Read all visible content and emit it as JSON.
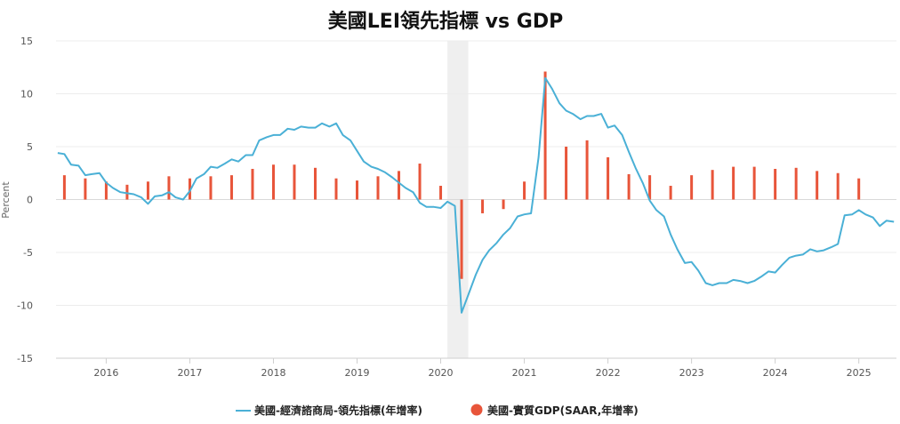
{
  "chart_data": {
    "type": "line+bar",
    "title": "美國LEI領先指標 vs GDP",
    "ylabel": "Percent",
    "xlabel": "",
    "ylim": [
      -15,
      15
    ],
    "yticks": [
      15,
      10,
      5,
      0,
      -5,
      -10,
      -15
    ],
    "xlim": [
      2015.4,
      2025.45
    ],
    "xticks": [
      "2016",
      "2017",
      "2018",
      "2019",
      "2020",
      "2021",
      "2022",
      "2023",
      "2024",
      "2025"
    ],
    "grid": true,
    "legend_position": "bottom",
    "shaded_periods": [
      [
        2020.08,
        2020.33
      ]
    ],
    "series": [
      {
        "name": "美國-經濟諮商局-領先指標(年增率)",
        "type": "line",
        "color": "#4ab0d6",
        "x": [
          2015.42,
          2015.5,
          2015.58,
          2015.67,
          2015.75,
          2015.83,
          2015.92,
          2016.0,
          2016.08,
          2016.17,
          2016.25,
          2016.33,
          2016.42,
          2016.5,
          2016.58,
          2016.67,
          2016.75,
          2016.83,
          2016.92,
          2017.0,
          2017.08,
          2017.17,
          2017.25,
          2017.33,
          2017.42,
          2017.5,
          2017.58,
          2017.67,
          2017.75,
          2017.83,
          2017.92,
          2018.0,
          2018.08,
          2018.17,
          2018.25,
          2018.33,
          2018.42,
          2018.5,
          2018.58,
          2018.67,
          2018.75,
          2018.83,
          2018.92,
          2019.0,
          2019.08,
          2019.17,
          2019.25,
          2019.33,
          2019.42,
          2019.5,
          2019.58,
          2019.67,
          2019.75,
          2019.83,
          2019.92,
          2020.0,
          2020.08,
          2020.17,
          2020.25,
          2020.33,
          2020.42,
          2020.5,
          2020.58,
          2020.67,
          2020.75,
          2020.83,
          2020.92,
          2021.0,
          2021.08,
          2021.17,
          2021.25,
          2021.33,
          2021.42,
          2021.5,
          2021.58,
          2021.67,
          2021.75,
          2021.83,
          2021.92,
          2022.0,
          2022.08,
          2022.17,
          2022.25,
          2022.33,
          2022.42,
          2022.5,
          2022.58,
          2022.67,
          2022.75,
          2022.83,
          2022.92,
          2023.0,
          2023.08,
          2023.17,
          2023.25,
          2023.33,
          2023.42,
          2023.5,
          2023.58,
          2023.67,
          2023.75,
          2023.83,
          2023.92,
          2024.0,
          2024.08,
          2024.17,
          2024.25,
          2024.33,
          2024.42,
          2024.5,
          2024.58,
          2024.67,
          2024.75,
          2024.83,
          2024.92,
          2025.0,
          2025.08,
          2025.17,
          2025.25,
          2025.33,
          2025.42
        ],
        "values": [
          4.4,
          4.3,
          3.3,
          3.2,
          2.3,
          2.4,
          2.5,
          1.6,
          1.1,
          0.7,
          0.6,
          0.5,
          0.2,
          -0.4,
          0.3,
          0.4,
          0.7,
          0.2,
          0.0,
          0.8,
          2.0,
          2.4,
          3.1,
          3.0,
          3.4,
          3.8,
          3.6,
          4.2,
          4.2,
          5.6,
          5.9,
          6.1,
          6.1,
          6.7,
          6.6,
          6.9,
          6.8,
          6.8,
          7.2,
          6.9,
          7.2,
          6.1,
          5.6,
          4.6,
          3.6,
          3.1,
          2.9,
          2.6,
          2.1,
          1.6,
          1.1,
          0.7,
          -0.3,
          -0.7,
          -0.7,
          -0.8,
          -0.2,
          -0.6,
          -10.7,
          -9.0,
          -7.1,
          -5.7,
          -4.8,
          -4.1,
          -3.3,
          -2.7,
          -1.6,
          -1.4,
          -1.3,
          4.0,
          11.5,
          10.5,
          9.1,
          8.4,
          8.1,
          7.6,
          7.9,
          7.9,
          8.1,
          6.8,
          7.0,
          6.1,
          4.5,
          3.0,
          1.5,
          -0.1,
          -1.0,
          -1.6,
          -3.3,
          -4.7,
          -6.0,
          -5.9,
          -6.7,
          -7.9,
          -8.1,
          -7.9,
          -7.9,
          -7.6,
          -7.7,
          -7.9,
          -7.7,
          -7.3,
          -6.8,
          -6.9,
          -6.2,
          -5.5,
          -5.3,
          -5.2,
          -4.7,
          -4.9,
          -4.8,
          -4.5,
          -4.2,
          -1.5,
          -1.4,
          -1.0,
          -1.4,
          -1.7,
          -2.5,
          -2.0,
          -2.1
        ]
      },
      {
        "name": "美國-實質GDP(SAAR,年增率)",
        "type": "bar",
        "color": "#e8553a",
        "x": [
          2015.5,
          2015.75,
          2016.0,
          2016.25,
          2016.5,
          2016.75,
          2017.0,
          2017.25,
          2017.5,
          2017.75,
          2018.0,
          2018.25,
          2018.5,
          2018.75,
          2019.0,
          2019.25,
          2019.5,
          2019.75,
          2020.0,
          2020.25,
          2020.5,
          2020.75,
          2021.0,
          2021.25,
          2021.5,
          2021.75,
          2022.0,
          2022.25,
          2022.5,
          2022.75,
          2023.0,
          2023.25,
          2023.5,
          2023.75,
          2024.0,
          2024.25,
          2024.5,
          2024.75,
          2025.0
        ],
        "values": [
          2.3,
          2.0,
          1.7,
          1.4,
          1.7,
          2.2,
          2.0,
          2.2,
          2.3,
          2.9,
          3.3,
          3.3,
          3.0,
          2.0,
          1.8,
          2.2,
          2.7,
          3.4,
          1.3,
          -7.5,
          -1.3,
          -0.9,
          1.7,
          12.1,
          5.0,
          5.6,
          4.0,
          2.4,
          2.3,
          1.3,
          2.3,
          2.8,
          3.1,
          3.1,
          2.9,
          3.0,
          2.7,
          2.5,
          2.0
        ]
      }
    ]
  }
}
